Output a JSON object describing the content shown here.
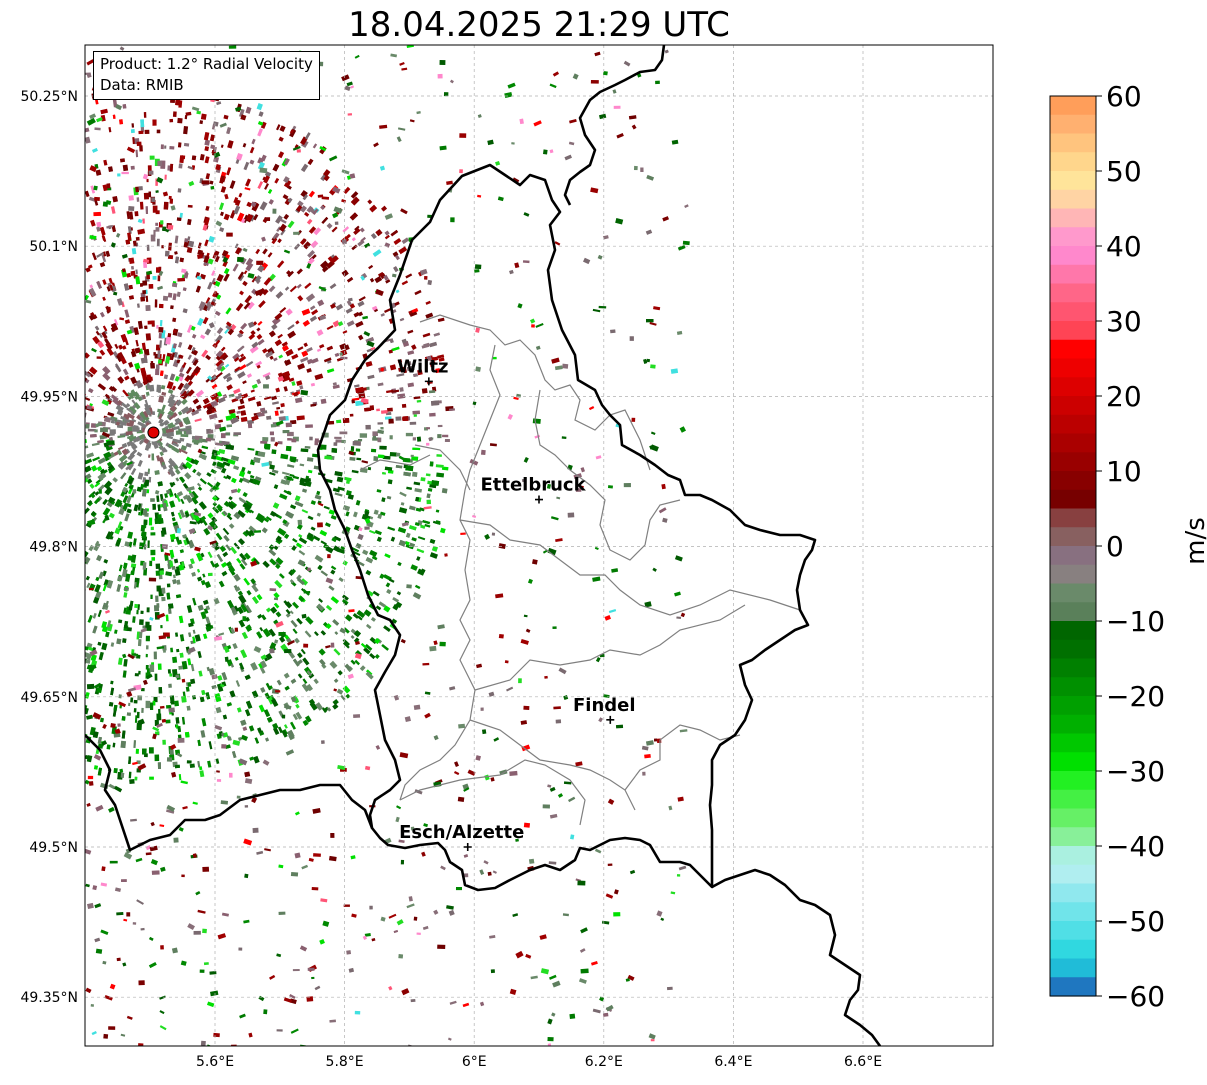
{
  "title": "18.04.2025 21:29 UTC",
  "info": {
    "product": "Product: 1.2° Radial Velocity",
    "data": "Data: RMIB"
  },
  "axes": {
    "lat_ticks": [
      "50.25°N",
      "50.1°N",
      "49.95°N",
      "49.8°N",
      "49.65°N",
      "49.5°N",
      "49.35°N"
    ],
    "lon_ticks": [
      "5.6°E",
      "5.8°E",
      "6°E",
      "6.2°E",
      "6.4°E",
      "6.6°E"
    ],
    "lat_range": [
      49.3,
      50.3
    ],
    "lon_range": [
      5.4,
      6.8
    ]
  },
  "colorbar": {
    "label": "m/s",
    "ticks": [
      "60",
      "50",
      "40",
      "30",
      "20",
      "10",
      "0",
      "−10",
      "−20",
      "−30",
      "−40",
      "−50",
      "−60"
    ],
    "range": [
      -60,
      60
    ],
    "colors_top_to_bottom": [
      "#ff9e5a",
      "#ffb070",
      "#ffc47e",
      "#ffd68c",
      "#ffe49a",
      "#ffd4a4",
      "#ffb6b6",
      "#ff99cc",
      "#ff88cc",
      "#ff77aa",
      "#ff6688",
      "#ff5570",
      "#ff4455",
      "#ff0000",
      "#ee0000",
      "#dd0000",
      "#cc0000",
      "#bb0000",
      "#aa0000",
      "#990000",
      "#880000",
      "#770000",
      "#884040",
      "#886060",
      "#887080",
      "#888080",
      "#6a8a6a",
      "#5a805a",
      "#006600",
      "#007000",
      "#008000",
      "#009000",
      "#00a000",
      "#00b000",
      "#00c800",
      "#00e000",
      "#22f022",
      "#44f044",
      "#66f066",
      "#88f099",
      "#aaf0e0",
      "#b0eef0",
      "#90e8ee",
      "#70e4ea",
      "#50dfe6",
      "#30d8e0",
      "#20bcd8",
      "#1f77c0"
    ]
  },
  "places": [
    {
      "name": "Wiltz",
      "lon": 5.93,
      "lat": 49.965
    },
    {
      "name": "Ettelbruck",
      "lon": 6.1,
      "lat": 49.847
    },
    {
      "name": "Findel",
      "lon": 6.21,
      "lat": 49.627
    },
    {
      "name": "Esch/Alzette",
      "lon": 5.99,
      "lat": 49.5
    }
  ],
  "radar_site": {
    "lon": 5.505,
    "lat": 49.914
  },
  "colors": {
    "border": "#000000",
    "admin": "#808080",
    "radar": "#e00000"
  }
}
